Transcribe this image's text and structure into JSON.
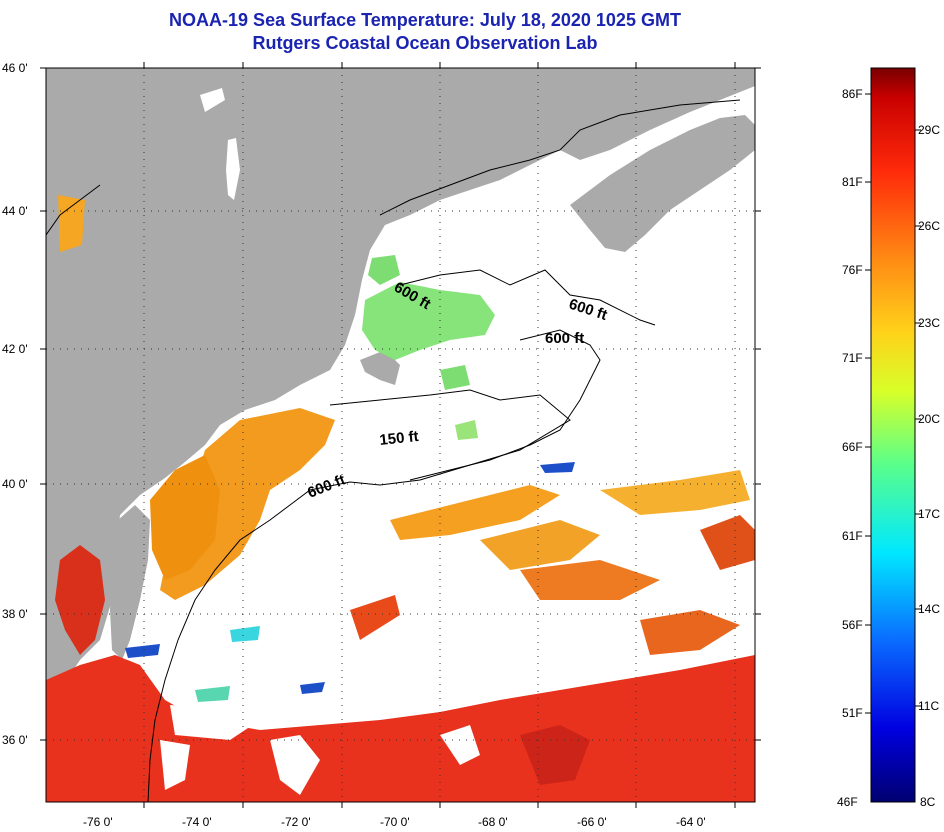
{
  "title_line1": "NOAA-19 Sea Surface Temperature:  July 18, 2020 1025 GMT",
  "title_line2": "Rutgers Coastal Ocean Observation Lab",
  "axes": {
    "lon_labels": [
      "-76 0'",
      "-74 0'",
      "-72 0'",
      "-70 0'",
      "-68 0'",
      "-66 0'",
      "-64 0'"
    ],
    "lat_labels": [
      "46 0'",
      "44 0'",
      "42 0'",
      "40 0'",
      "38 0'",
      "36 0'"
    ]
  },
  "contours": {
    "label_150": "150 ft",
    "label_600a": "600 ft",
    "label_600b": "600 ft",
    "label_600c": "600 ft",
    "label_600d": "600 ft"
  },
  "colorbar": {
    "fahrenheit": [
      "86F",
      "81F",
      "76F",
      "71F",
      "66F",
      "61F",
      "56F",
      "51F",
      "46F"
    ],
    "celsius": [
      "29C",
      "26C",
      "23C",
      "20C",
      "17C",
      "14C",
      "11C",
      "8C"
    ]
  },
  "colors": {
    "land": "#aaaaaa",
    "cloud": "#ffffff",
    "title": "#1a24b0",
    "warm": "#e8301e",
    "orange": "#f09a1c",
    "green": "#7ce07a",
    "blue": "#1d4fc8"
  }
}
